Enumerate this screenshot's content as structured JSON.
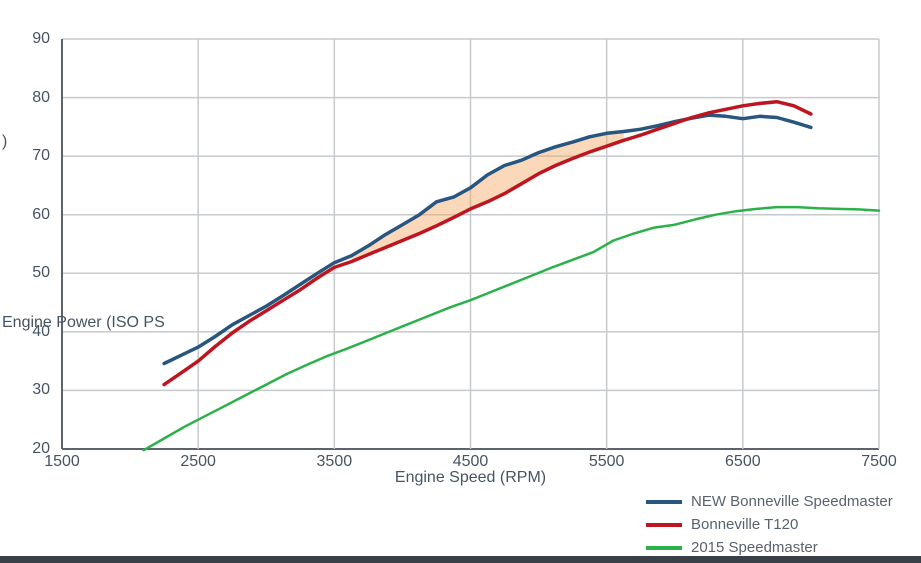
{
  "page": {
    "background": "#ffffff",
    "bottom_bar_color": "#3a4047"
  },
  "chart_data": {
    "type": "line",
    "title": "",
    "xlabel": "Engine Speed (RPM)",
    "ylabel": "Engine Power (ISO PS",
    "ylabel_fragment_top": ")",
    "xlim": [
      1500,
      7500
    ],
    "ylim": [
      20,
      90
    ],
    "x_ticks": [
      1500,
      2500,
      3500,
      4500,
      5500,
      6500,
      7500
    ],
    "y_ticks": [
      20,
      30,
      40,
      50,
      60,
      70,
      80,
      90
    ],
    "grid": true,
    "grid_color": "#c6cacd",
    "axis_color": "#5c636b",
    "legend_position": "bottom-right",
    "series": [
      {
        "name": "NEW Bonneville Speedmaster",
        "color": "#28567F",
        "width": 3.5,
        "x": [
          2250,
          2375,
          2500,
          2625,
          2750,
          2875,
          3000,
          3125,
          3250,
          3375,
          3500,
          3625,
          3750,
          3875,
          4000,
          4125,
          4250,
          4375,
          4500,
          4625,
          4750,
          4875,
          5000,
          5125,
          5250,
          5375,
          5500,
          5625,
          5750,
          5875,
          6000,
          6125,
          6250,
          6375,
          6500,
          6625,
          6750,
          6875,
          7000
        ],
        "y": [
          34.6,
          36.0,
          37.4,
          39.2,
          41.2,
          42.8,
          44.4,
          46.2,
          48.1,
          50.0,
          51.8,
          53.0,
          54.7,
          56.6,
          58.3,
          60.0,
          62.2,
          63.0,
          64.6,
          66.8,
          68.4,
          69.3,
          70.6,
          71.6,
          72.4,
          73.3,
          73.9,
          74.2,
          74.6,
          75.2,
          75.9,
          76.5,
          77.0,
          76.8,
          76.4,
          76.8,
          76.6,
          75.8,
          74.9
        ]
      },
      {
        "name": "Bonneville T120",
        "color": "#BE1620",
        "width": 3.5,
        "x": [
          2250,
          2375,
          2500,
          2625,
          2750,
          2875,
          3000,
          3125,
          3250,
          3375,
          3500,
          3625,
          3750,
          3875,
          4000,
          4125,
          4250,
          4375,
          4500,
          4625,
          4750,
          4875,
          5000,
          5125,
          5250,
          5375,
          5500,
          5625,
          5750,
          5875,
          6000,
          6125,
          6250,
          6375,
          6500,
          6625,
          6750,
          6875,
          7000
        ],
        "y": [
          31.0,
          33.0,
          35.0,
          37.5,
          39.8,
          41.8,
          43.6,
          45.4,
          47.2,
          49.2,
          51.0,
          52.0,
          53.2,
          54.4,
          55.6,
          56.8,
          58.1,
          59.5,
          61.0,
          62.2,
          63.6,
          65.3,
          67.0,
          68.4,
          69.6,
          70.7,
          71.7,
          72.7,
          73.6,
          74.6,
          75.6,
          76.6,
          77.4,
          78.0,
          78.6,
          79.0,
          79.3,
          78.6,
          77.2
        ]
      },
      {
        "name": "2015 Speedmaster",
        "color": "#2CB14A",
        "width": 2.5,
        "x": [
          2100,
          2250,
          2400,
          2550,
          2700,
          2850,
          3000,
          3150,
          3300,
          3450,
          3600,
          3750,
          3900,
          4050,
          4200,
          4350,
          4500,
          4650,
          4800,
          4950,
          5100,
          5250,
          5400,
          5550,
          5700,
          5850,
          6000,
          6150,
          6300,
          6450,
          6600,
          6750,
          6900,
          7050,
          7200,
          7350,
          7500
        ],
        "y": [
          19.8,
          21.8,
          23.8,
          25.6,
          27.4,
          29.2,
          31.0,
          32.8,
          34.4,
          35.9,
          37.2,
          38.6,
          40.0,
          41.4,
          42.8,
          44.2,
          45.4,
          46.8,
          48.2,
          49.6,
          51.0,
          52.3,
          53.6,
          55.6,
          56.8,
          57.8,
          58.3,
          59.2,
          60.0,
          60.6,
          61.0,
          61.3,
          61.3,
          61.1,
          61.0,
          60.9,
          60.7
        ]
      }
    ],
    "shaded_area": {
      "between": [
        "NEW Bonneville Speedmaster",
        "Bonneville T120"
      ],
      "x_range": [
        3550,
        5700
      ],
      "color": "#F4A963",
      "opacity": 0.45
    }
  }
}
